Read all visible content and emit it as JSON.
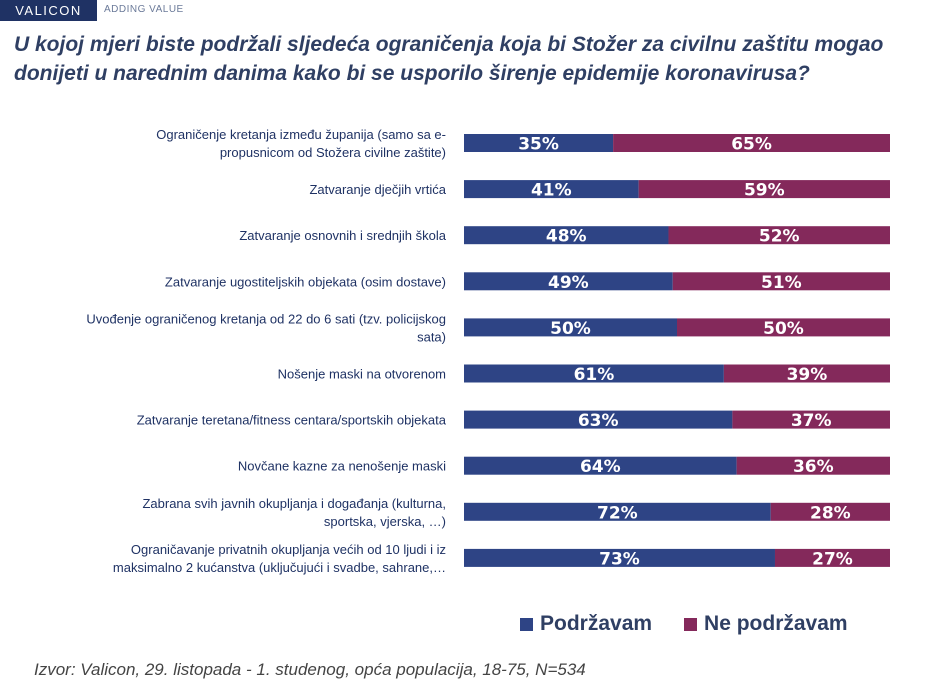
{
  "brand": {
    "logo_text": "VALICON",
    "tagline": "ADDING VALUE"
  },
  "source": "Izvor: Valicon, 29. listopada - 1. studenog, opća populacija, 18-75, N=534",
  "colors": {
    "support": "#2e4485",
    "oppose": "#84295b",
    "brand": "#1f3264"
  },
  "chart_data": {
    "type": "bar",
    "orientation": "horizontal",
    "stacked": true,
    "title": "U kojoj mjeri biste podržali sljedeća ograničenja koja bi Stožer za civilnu zaštitu mogao donijeti u narednim danima kako bi se usporilo širenje epidemije koronavirusa?",
    "categories": [
      [
        "Ograničenje kretanja između županija (samo sa e-",
        "propusnicom od Stožera civilne zaštite)"
      ],
      [
        "Zatvaranje dječjih vrtića"
      ],
      [
        "Zatvaranje osnovnih i srednjih škola"
      ],
      [
        "Zatvaranje ugostiteljskih objekata (osim dostave)"
      ],
      [
        "Uvođenje ograničenog kretanja od 22 do 6 sati (tzv. policijskog",
        "sata)"
      ],
      [
        "Nošenje maski na otvorenom"
      ],
      [
        "Zatvaranje teretana/fitness centara/sportskih objekata"
      ],
      [
        "Novčane kazne za nenošenje maski"
      ],
      [
        "Zabrana svih javnih okupljanja i događanja (kulturna,",
        "sportska, vjerska, …)"
      ],
      [
        "Ograničavanje privatnih okupljanja većih od 10 ljudi i iz",
        "maksimalno 2 kućanstva (uključujući i svadbe, sahrane,…"
      ]
    ],
    "series": [
      {
        "name": "Podržavam",
        "values": [
          35,
          41,
          48,
          49,
          50,
          61,
          63,
          64,
          72,
          73
        ]
      },
      {
        "name": "Ne podržavam",
        "values": [
          65,
          59,
          52,
          51,
          50,
          39,
          37,
          36,
          28,
          27
        ]
      }
    ],
    "value_suffix": "%",
    "xlim": [
      0,
      100
    ],
    "grid": false,
    "legend_position": "bottom-right"
  }
}
